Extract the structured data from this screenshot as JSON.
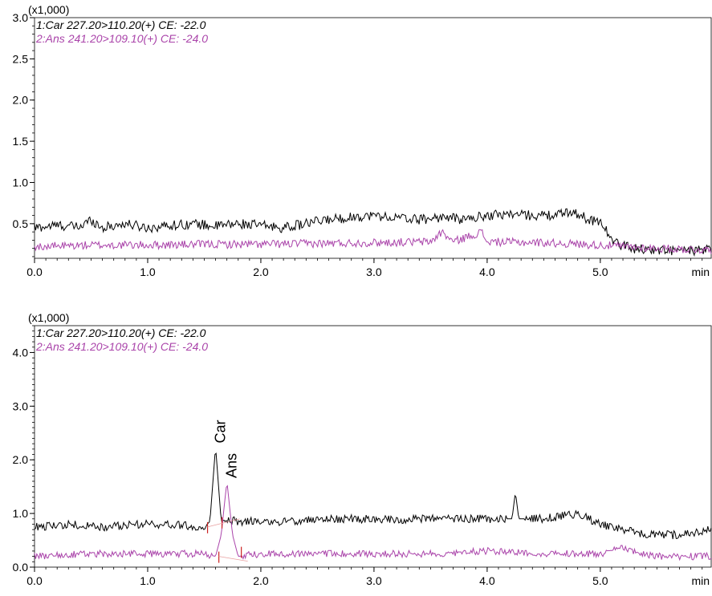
{
  "chart_data": [
    {
      "type": "line",
      "scale_label": "(x1,000)",
      "xlabel": "min",
      "xlim": [
        0.0,
        5.98
      ],
      "ylim": [
        0.08,
        3.0
      ],
      "x_ticks": [
        "0.0",
        "1.0",
        "2.0",
        "3.0",
        "4.0",
        "5.0"
      ],
      "y_ticks": [
        "0.5",
        "1.0",
        "1.5",
        "2.0",
        "2.5",
        "3.0"
      ],
      "series": [
        {
          "name": "1:Car 227.20>110.20(+) CE: -22.0",
          "color": "#000000",
          "x": [
            0.0,
            0.2,
            0.4,
            0.5,
            0.6,
            0.8,
            1.0,
            1.2,
            1.4,
            1.6,
            1.8,
            2.0,
            2.2,
            2.4,
            2.6,
            2.8,
            3.0,
            3.2,
            3.4,
            3.6,
            3.8,
            4.0,
            4.2,
            4.4,
            4.6,
            4.75,
            4.9,
            5.0,
            5.05,
            5.1,
            5.3,
            5.5,
            5.7,
            5.98
          ],
          "y": [
            0.45,
            0.48,
            0.46,
            0.55,
            0.45,
            0.5,
            0.45,
            0.48,
            0.5,
            0.47,
            0.5,
            0.48,
            0.45,
            0.5,
            0.55,
            0.58,
            0.6,
            0.57,
            0.55,
            0.58,
            0.55,
            0.6,
            0.62,
            0.6,
            0.6,
            0.65,
            0.55,
            0.52,
            0.45,
            0.28,
            0.2,
            0.18,
            0.17,
            0.18
          ]
        },
        {
          "name": "2:Ans 241.20>109.10(+) CE: -24.0",
          "color": "#aa44aa",
          "x": [
            0.0,
            0.5,
            1.0,
            1.5,
            2.0,
            2.5,
            3.0,
            3.5,
            3.6,
            3.7,
            3.95,
            4.0,
            4.5,
            5.0,
            5.5,
            5.98
          ],
          "y": [
            0.22,
            0.24,
            0.24,
            0.25,
            0.25,
            0.26,
            0.27,
            0.28,
            0.4,
            0.28,
            0.4,
            0.28,
            0.27,
            0.24,
            0.2,
            0.18
          ]
        }
      ]
    },
    {
      "type": "line",
      "scale_label": "(x1,000)",
      "xlabel": "min",
      "xlim": [
        0.0,
        5.98
      ],
      "ylim": [
        0.0,
        4.5
      ],
      "x_ticks": [
        "0.0",
        "1.0",
        "2.0",
        "3.0",
        "4.0",
        "5.0"
      ],
      "y_ticks": [
        "0.0",
        "1.0",
        "2.0",
        "3.0",
        "4.0"
      ],
      "series": [
        {
          "name": "1:Car 227.20>110.20(+) CE: -22.0",
          "color": "#000000",
          "x": [
            0.0,
            0.3,
            0.6,
            0.9,
            1.2,
            1.5,
            1.55,
            1.6,
            1.65,
            1.7,
            1.8,
            2.0,
            2.3,
            2.6,
            2.9,
            3.2,
            3.5,
            3.8,
            4.1,
            4.22,
            4.25,
            4.28,
            4.5,
            4.8,
            5.0,
            5.2,
            5.4,
            5.7,
            5.98
          ],
          "y": [
            0.75,
            0.8,
            0.75,
            0.8,
            0.8,
            0.75,
            0.85,
            2.25,
            0.85,
            0.9,
            0.85,
            0.85,
            0.85,
            0.9,
            0.9,
            0.88,
            0.9,
            0.9,
            0.9,
            0.9,
            1.4,
            0.9,
            0.9,
            1.0,
            0.8,
            0.7,
            0.6,
            0.6,
            0.7
          ]
        },
        {
          "name": "2:Ans 241.20>109.10(+) CE: -24.0",
          "color": "#aa44aa",
          "x": [
            0.0,
            0.5,
            1.0,
            1.5,
            1.6,
            1.65,
            1.7,
            1.75,
            1.8,
            2.0,
            2.5,
            3.0,
            3.5,
            4.0,
            4.5,
            5.0,
            5.2,
            5.5,
            5.98
          ],
          "y": [
            0.2,
            0.25,
            0.25,
            0.25,
            0.2,
            0.6,
            1.6,
            0.6,
            0.2,
            0.25,
            0.25,
            0.25,
            0.25,
            0.3,
            0.25,
            0.25,
            0.35,
            0.2,
            0.2
          ]
        }
      ],
      "annotations": [
        {
          "text": "Car",
          "x": 1.6,
          "y": 2.25
        },
        {
          "text": "Ans",
          "x": 1.7,
          "y": 1.6
        }
      ]
    }
  ]
}
